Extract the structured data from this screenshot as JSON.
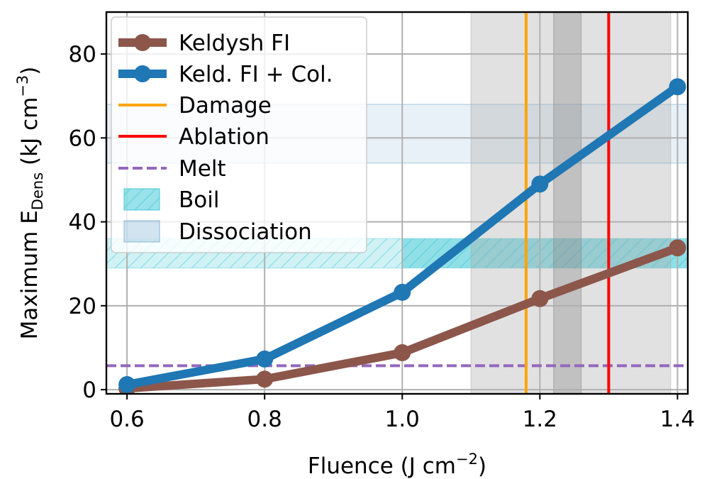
{
  "chart_data": {
    "type": "line",
    "xlabel": "Fluence  (J cm",
    "xlabel_sup": "−2",
    "xlabel_end": ")",
    "ylabel_main": "Maximum E",
    "ylabel_sub": "Dens",
    "ylabel_unit": " (kJ cm",
    "ylabel_sup": "−3",
    "ylabel_end": ")",
    "xlim": [
      0.57,
      1.415
    ],
    "ylim": [
      -1,
      90
    ],
    "x_ticks": [
      0.6,
      0.8,
      1.0,
      1.2,
      1.4
    ],
    "x_tick_labels": [
      "0.6",
      "0.8",
      "1.0",
      "1.2",
      "1.4"
    ],
    "y_ticks": [
      0,
      20,
      40,
      60,
      80
    ],
    "y_tick_labels": [
      "0",
      "20",
      "40",
      "60",
      "80"
    ],
    "grid": true,
    "legend_position": "top-left",
    "series": [
      {
        "name": "Keldysh FI",
        "color": "#8c564b",
        "x": [
          0.6,
          0.8,
          1.0,
          1.2,
          1.4
        ],
        "y": [
          0.3,
          2.5,
          8.8,
          21.7,
          33.8
        ]
      },
      {
        "name": "Keld. FI + Col.",
        "color": "#1f77b4",
        "x": [
          0.6,
          0.8,
          1.0,
          1.2,
          1.4
        ],
        "y": [
          1.2,
          7.3,
          23.2,
          49.0,
          72.2
        ]
      }
    ],
    "vlines": [
      {
        "name": "Damage",
        "x": 1.18,
        "color": "#ffa500"
      },
      {
        "name": "Ablation",
        "x": 1.3,
        "color": "#ff0000"
      }
    ],
    "hlines": [
      {
        "name": "Melt",
        "y": 5.7,
        "color": "#9467bd",
        "style": "dashed"
      }
    ],
    "hbands": [
      {
        "name": "Boil",
        "y0": 29,
        "y1": 36,
        "color": "#17becf",
        "hatch": true
      },
      {
        "name": "Dissociation",
        "y0": 54,
        "y1": 68,
        "color": "#1f77b4",
        "hatch": false
      }
    ],
    "vbands": [
      {
        "x0": 1.1,
        "x1": 1.39,
        "color": "#aaaaaa"
      },
      {
        "x0": 1.22,
        "x1": 1.26,
        "color": "#888888"
      }
    ]
  }
}
